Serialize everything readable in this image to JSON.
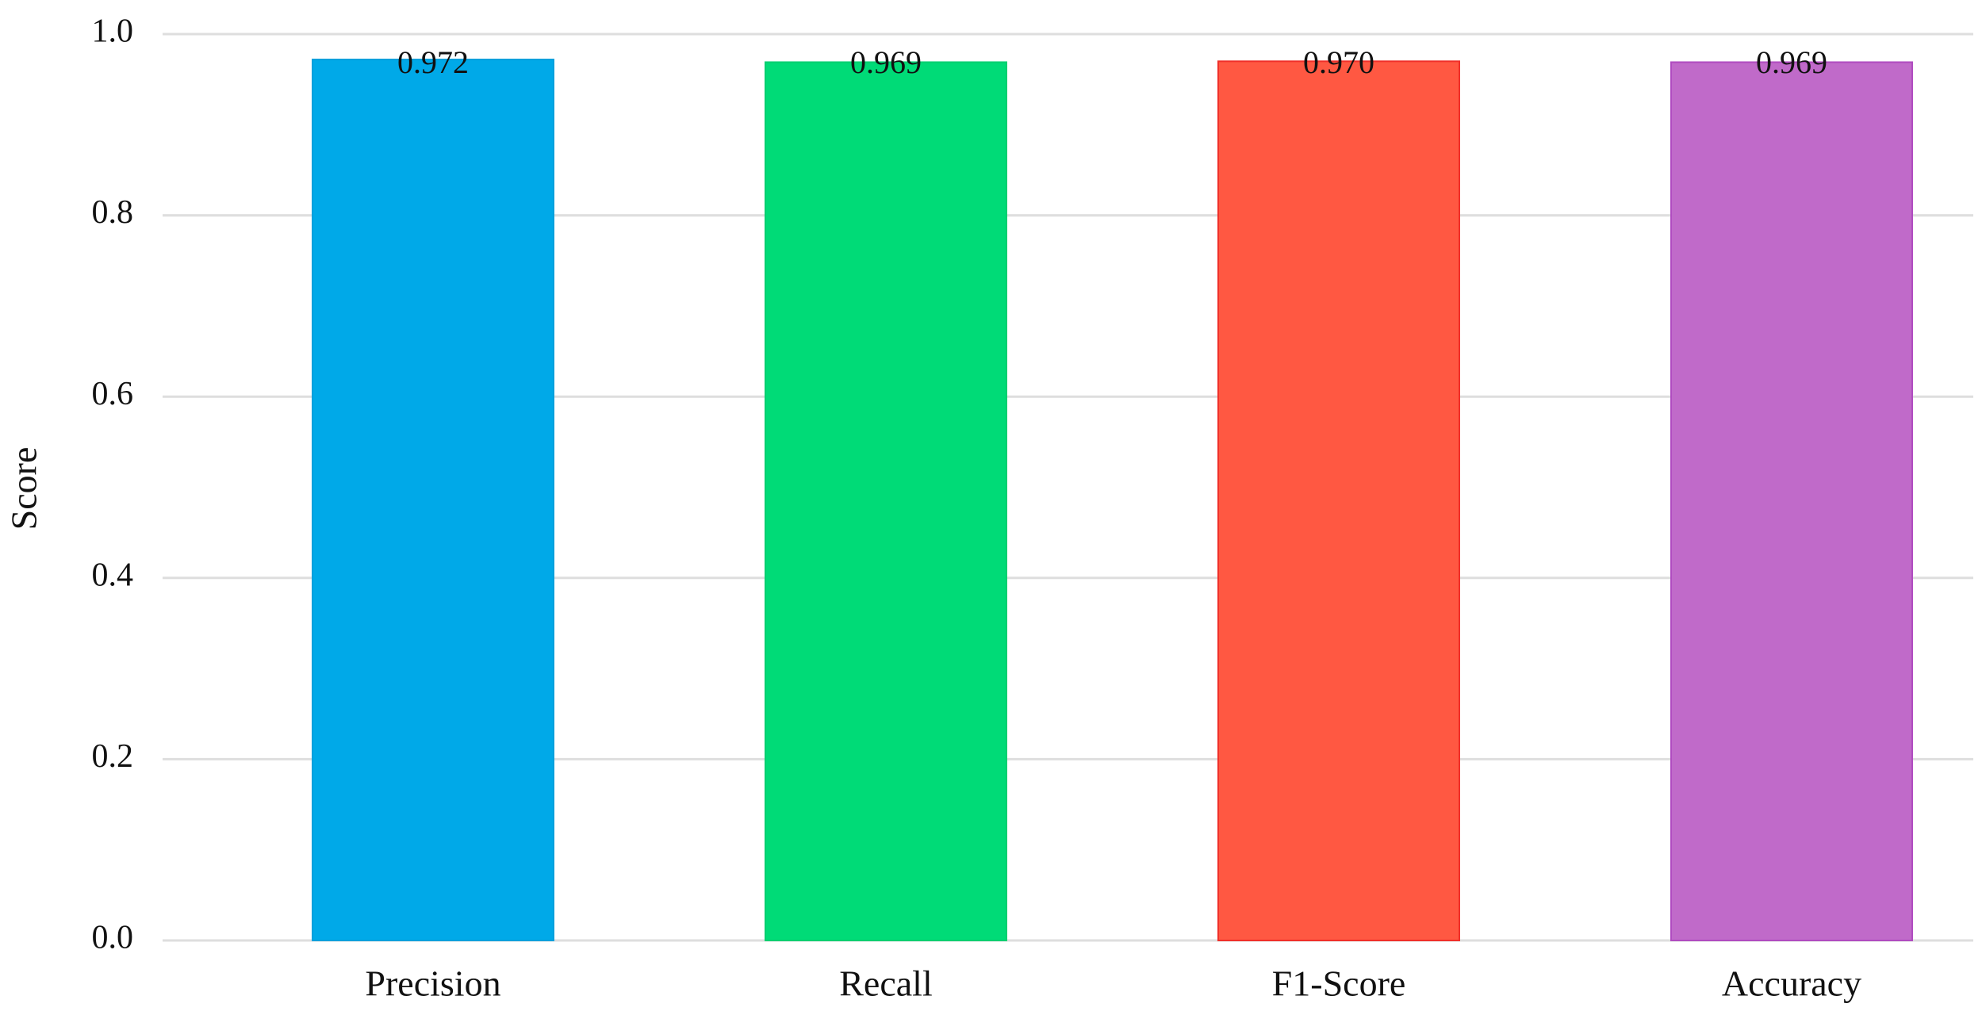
{
  "chart_data": {
    "type": "bar",
    "y_label": "Score",
    "categories": [
      "Precision",
      "Recall",
      "F1-Score",
      "Accuracy"
    ],
    "values": [
      0.972,
      0.969,
      0.97,
      0.969
    ],
    "value_labels": [
      "0.972",
      "0.969",
      "0.970",
      "0.969"
    ],
    "colors": [
      "#00a9e8",
      "#00db77",
      "#ff5842",
      "#c06ac9"
    ],
    "edge_colors": [
      "#00a0dc",
      "#00cf70",
      "#f0302a",
      "#b04cc0"
    ],
    "ylim": [
      0,
      1
    ],
    "yticks": [
      {
        "value": 0,
        "label": "0.0"
      },
      0.2,
      0.4,
      0.6,
      0.8,
      {
        "value": 1,
        "label": "1.0"
      }
    ],
    "grid": true
  }
}
